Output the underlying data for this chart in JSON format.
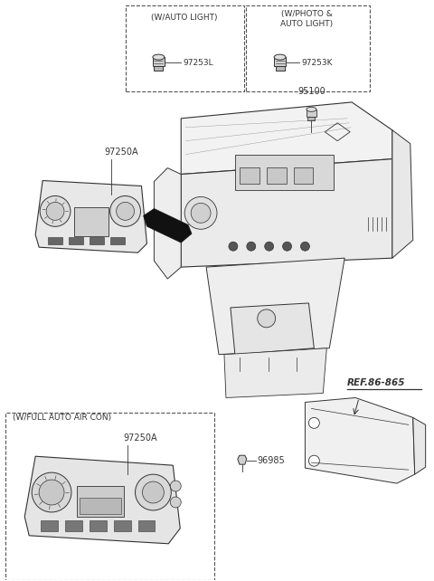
{
  "bg_color": "#ffffff",
  "line_color": "#333333",
  "fig_width": 4.8,
  "fig_height": 6.42,
  "dpi": 100,
  "labels": {
    "auto_light_box_title": "(W/AUTO LIGHT)",
    "photo_light_box_title": "(W/PHOTO &\nAUTO LIGHT)",
    "part_97253L": "97253L",
    "part_97253K": "97253K",
    "part_95100": "95100",
    "part_97250A_top": "97250A",
    "part_97250A_bot": "97250A",
    "part_96985": "96985",
    "ref_label": "REF.86-865",
    "full_auto_box_title": "(W/FULL AUTO AIR CON)"
  },
  "font_size_label": 7,
  "font_size_part": 7,
  "font_size_ref": 7
}
